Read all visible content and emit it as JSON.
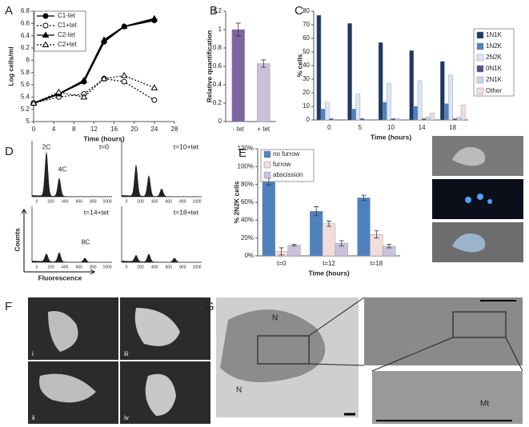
{
  "panel_labels": [
    "A",
    "B",
    "C",
    "D",
    "E",
    "F",
    "G"
  ],
  "chart_data": [
    {
      "type": "line",
      "xlabel": "Time (hours)",
      "ylabel": "Log cells/ml",
      "x": [
        0,
        5,
        10,
        14,
        18,
        24
      ],
      "xlim": [
        0,
        28
      ],
      "xticks": [
        0,
        4,
        8,
        12,
        16,
        20,
        24,
        28
      ],
      "ylim": [
        5,
        6.8
      ],
      "yticks": [
        5,
        5.2,
        5.4,
        5.6,
        5.8,
        6,
        6.2,
        6.4,
        6.6,
        6.8
      ],
      "legend": "top-left",
      "series": [
        {
          "name": "C1-tet",
          "color": "#000000",
          "marker": "circle",
          "filled": true,
          "dashed": false,
          "values": [
            5.3,
            5.45,
            5.65,
            6.3,
            6.55,
            6.65
          ]
        },
        {
          "name": "C1+tet",
          "color": "#000000",
          "marker": "circle",
          "filled": false,
          "dashed": true,
          "values": [
            5.3,
            5.4,
            5.45,
            5.7,
            5.65,
            5.35
          ]
        },
        {
          "name": "C2-tet",
          "color": "#000000",
          "marker": "triangle",
          "filled": true,
          "dashed": false,
          "values": [
            5.3,
            5.45,
            5.67,
            6.33,
            6.55,
            6.68
          ]
        },
        {
          "name": "C2+tet",
          "color": "#000000",
          "marker": "triangle",
          "filled": false,
          "dashed": true,
          "values": [
            5.3,
            5.48,
            5.4,
            5.7,
            5.75,
            5.55
          ]
        }
      ]
    },
    {
      "type": "bar",
      "ylabel": "Relative quantification",
      "categories": [
        "- tet",
        "+ tet"
      ],
      "ylim": [
        0,
        1.2
      ],
      "yticks": [
        0,
        0.2,
        0.4,
        0.6,
        0.8,
        1,
        1.2
      ],
      "values": [
        1.0,
        0.63
      ],
      "errors": [
        0.07,
        0.04
      ],
      "colors": [
        "#8064a2",
        "#ccc1da"
      ]
    },
    {
      "type": "bar",
      "xlabel": "Time (hours)",
      "ylabel": "% cells",
      "categories": [
        "0",
        "5",
        "10",
        "14",
        "18"
      ],
      "ylim": [
        0,
        80
      ],
      "yticks": [
        0,
        10,
        20,
        30,
        40,
        50,
        60,
        70,
        80
      ],
      "legend": "right",
      "series": [
        {
          "name": "1N1K",
          "color": "#1f3864",
          "values": [
            77,
            71,
            57,
            51,
            43
          ]
        },
        {
          "name": "1N2K",
          "color": "#4f81bd",
          "values": [
            8,
            8,
            13,
            10,
            12
          ]
        },
        {
          "name": "2N2K",
          "color": "#dce6f2",
          "values": [
            13,
            19,
            27,
            29,
            33
          ]
        },
        {
          "name": "0N1K",
          "color": "#604a7b",
          "values": [
            1,
            1,
            1,
            1,
            1
          ]
        },
        {
          "name": "2N1K",
          "color": "#c5d3e8",
          "values": [
            0.5,
            0.5,
            1,
            2,
            2
          ]
        },
        {
          "name": "Other",
          "color": "#f2dcdb",
          "values": [
            0,
            0.5,
            0.5,
            5,
            11
          ]
        }
      ]
    },
    {
      "type": "bar",
      "xlabel": "Time (hours)",
      "ylabel": "% 2N2K cells",
      "categories": [
        "t=0",
        "t=12",
        "t=18"
      ],
      "ylim": [
        0,
        120
      ],
      "yticks": [
        {
          "value": 0,
          "label": "0%"
        },
        {
          "value": 20,
          "label": "20%"
        },
        {
          "value": 40,
          "label": "40%"
        },
        {
          "value": 60,
          "label": "60%"
        },
        {
          "value": 80,
          "label": "80%"
        },
        {
          "value": 100,
          "label": "100%"
        },
        {
          "value": 120,
          "label": "120%"
        }
      ],
      "legend": "top",
      "series": [
        {
          "name": "no furrow",
          "color": "#4f81bd",
          "values": [
            83,
            50,
            65
          ],
          "errors": [
            4,
            5,
            3
          ]
        },
        {
          "name": "furrow",
          "color": "#f2dcdb",
          "values": [
            5,
            36,
            24
          ],
          "errors": [
            4,
            3,
            4
          ]
        },
        {
          "name": "abscission",
          "color": "#ccc1da",
          "values": [
            12,
            14,
            11
          ],
          "errors": [
            1,
            3,
            2
          ]
        }
      ]
    }
  ],
  "flow": {
    "times": [
      "t=0",
      "t=10+tet",
      "t=14+tet",
      "t=18+tet"
    ],
    "peaks": [
      "2C",
      "4C",
      "8C"
    ],
    "xticks": [
      "0",
      "200",
      "400",
      "600",
      "800",
      "1000"
    ],
    "ylabel": "Counts",
    "xlabel": "Fluorescence"
  },
  "micrographs": {
    "F": [
      "i",
      "ii",
      "iii",
      "iv"
    ],
    "G": [
      "N",
      "N",
      "Mt"
    ]
  }
}
